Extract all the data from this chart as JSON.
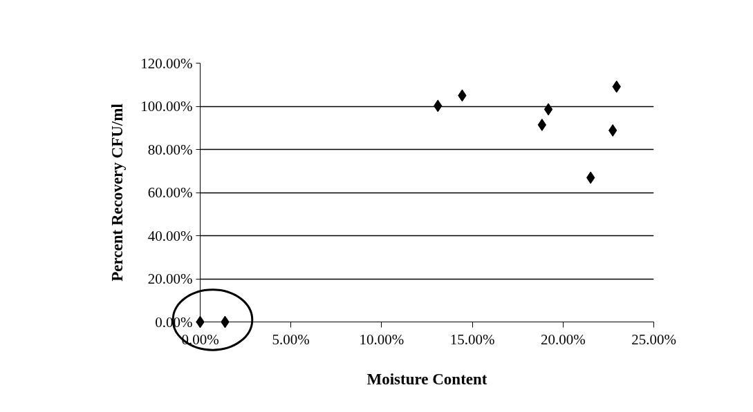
{
  "chart_data": {
    "type": "scatter",
    "xlabel": "Moisture Content",
    "ylabel": "Percent Recovery CFU/ml",
    "x": [
      0,
      1.37,
      13.1,
      14.44,
      18.84,
      19.19,
      21.52,
      22.74,
      22.95
    ],
    "series": [
      {
        "color": "#000000",
        "values": [
          0,
          0,
          100.2,
          105.0,
          91.4,
          98.6,
          66.9,
          88.8,
          109.1
        ]
      }
    ],
    "marker": "diamond",
    "grid": "y",
    "xlim": [
      0,
      25
    ],
    "ylim": [
      0,
      120
    ],
    "xticks": [
      {
        "value": 0,
        "label": "0.00%"
      },
      {
        "value": 5,
        "label": "5.00%"
      },
      {
        "value": 10,
        "label": "10.00%"
      },
      {
        "value": 15,
        "label": "15.00%"
      },
      {
        "value": 20,
        "label": "20.00%"
      },
      {
        "value": 25,
        "label": "25.00%"
      }
    ],
    "yticks": [
      {
        "value": 0,
        "label": "0.00%"
      },
      {
        "value": 20,
        "label": "20.00%"
      },
      {
        "value": 40,
        "label": "40.00%"
      },
      {
        "value": 60,
        "label": "60.00%"
      },
      {
        "value": 80,
        "label": "80.00%"
      },
      {
        "value": 100,
        "label": "100.00%"
      },
      {
        "value": 120,
        "label": "120.00%"
      }
    ]
  }
}
